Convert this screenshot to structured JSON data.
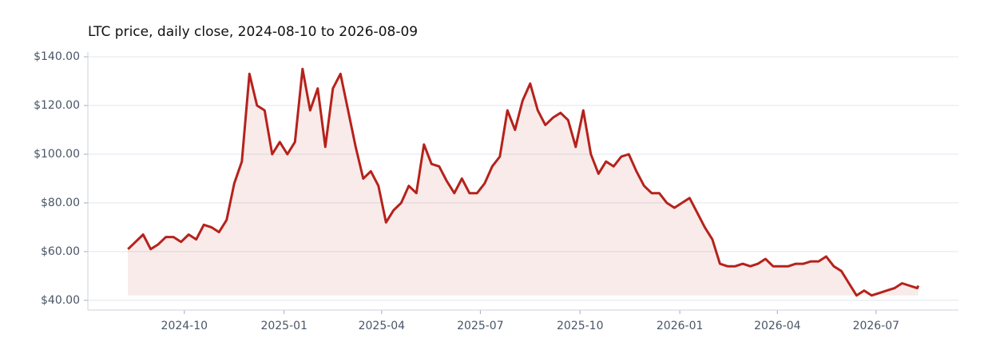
{
  "chart_data": {
    "type": "line",
    "title": "LTC price, daily close, 2024-08-10 to 2026-08-09",
    "x": [
      "2024-08-10",
      "2024-08-17",
      "2024-08-24",
      "2024-08-31",
      "2024-09-07",
      "2024-09-14",
      "2024-09-21",
      "2024-09-28",
      "2024-10-05",
      "2024-10-12",
      "2024-10-19",
      "2024-10-26",
      "2024-11-02",
      "2024-11-09",
      "2024-11-16",
      "2024-11-23",
      "2024-11-30",
      "2024-12-07",
      "2024-12-14",
      "2024-12-21",
      "2024-12-28",
      "2025-01-04",
      "2025-01-11",
      "2025-01-18",
      "2025-01-25",
      "2025-02-01",
      "2025-02-08",
      "2025-02-15",
      "2025-02-22",
      "2025-03-01",
      "2025-03-08",
      "2025-03-15",
      "2025-03-22",
      "2025-03-29",
      "2025-04-05",
      "2025-04-12",
      "2025-04-19",
      "2025-04-26",
      "2025-05-03",
      "2025-05-10",
      "2025-05-17",
      "2025-05-24",
      "2025-05-31",
      "2025-06-07",
      "2025-06-14",
      "2025-06-21",
      "2025-06-28",
      "2025-07-05",
      "2025-07-12",
      "2025-07-19",
      "2025-07-26",
      "2025-08-02",
      "2025-08-09",
      "2025-08-16",
      "2025-08-23",
      "2025-08-30",
      "2025-09-06",
      "2025-09-13",
      "2025-09-20",
      "2025-09-27",
      "2025-10-04",
      "2025-10-11",
      "2025-10-18",
      "2025-10-25",
      "2025-11-01",
      "2025-11-08",
      "2025-11-15",
      "2025-11-22",
      "2025-11-29",
      "2025-12-06",
      "2025-12-13",
      "2025-12-20",
      "2025-12-27",
      "2026-01-03",
      "2026-01-10",
      "2026-01-17",
      "2026-01-24",
      "2026-01-31",
      "2026-02-07",
      "2026-02-14",
      "2026-02-21",
      "2026-02-28",
      "2026-03-07",
      "2026-03-14",
      "2026-03-21",
      "2026-03-28",
      "2026-04-04",
      "2026-04-11",
      "2026-04-18",
      "2026-04-25",
      "2026-05-02",
      "2026-05-09",
      "2026-05-16",
      "2026-05-23",
      "2026-05-30",
      "2026-06-06",
      "2026-06-13",
      "2026-06-20",
      "2026-06-27",
      "2026-07-04",
      "2026-07-11",
      "2026-07-18",
      "2026-07-25",
      "2026-08-01",
      "2026-08-08",
      "2026-08-09"
    ],
    "series": [
      {
        "name": "LTC",
        "color": "#b5221b",
        "values": [
          61,
          64,
          67,
          61,
          63,
          66,
          66,
          64,
          67,
          65,
          71,
          70,
          68,
          73,
          88,
          97,
          133,
          120,
          118,
          100,
          105,
          100,
          105,
          135,
          118,
          127,
          103,
          127,
          133,
          118,
          103,
          90,
          93,
          87,
          72,
          77,
          80,
          87,
          84,
          104,
          96,
          95,
          89,
          84,
          90,
          84,
          84,
          88,
          95,
          99,
          118,
          110,
          122,
          129,
          118,
          112,
          115,
          117,
          114,
          103,
          118,
          100,
          92,
          97,
          95,
          99,
          100,
          93,
          87,
          84,
          84,
          80,
          78,
          80,
          82,
          76,
          70,
          65,
          55,
          54,
          54,
          55,
          54,
          55,
          57,
          54,
          54,
          54,
          55,
          55,
          56,
          56,
          58,
          54,
          52,
          47,
          42,
          44,
          42,
          43,
          44,
          45,
          47,
          46,
          45,
          46
        ]
      }
    ],
    "xlim": [
      "2024-07-04",
      "2026-09-15"
    ],
    "xticks": [
      {
        "value": "2024-10-01",
        "label": "2024-10"
      },
      {
        "value": "2025-01-01",
        "label": "2025-01"
      },
      {
        "value": "2025-04-01",
        "label": "2025-04"
      },
      {
        "value": "2025-07-01",
        "label": "2025-07"
      },
      {
        "value": "2025-10-01",
        "label": "2025-10"
      },
      {
        "value": "2026-01-01",
        "label": "2026-01"
      },
      {
        "value": "2026-04-01",
        "label": "2026-04"
      },
      {
        "value": "2026-07-01",
        "label": "2026-07"
      }
    ],
    "ylim": [
      36,
      142
    ],
    "yticks": [
      {
        "value": 40,
        "label": "$40.00"
      },
      {
        "value": 60,
        "label": "$60.00"
      },
      {
        "value": 80,
        "label": "$80.00"
      },
      {
        "value": 100,
        "label": "$100.00"
      },
      {
        "value": 120,
        "label": "$120.00"
      },
      {
        "value": 140,
        "label": "$140.00"
      }
    ],
    "grid": true
  }
}
